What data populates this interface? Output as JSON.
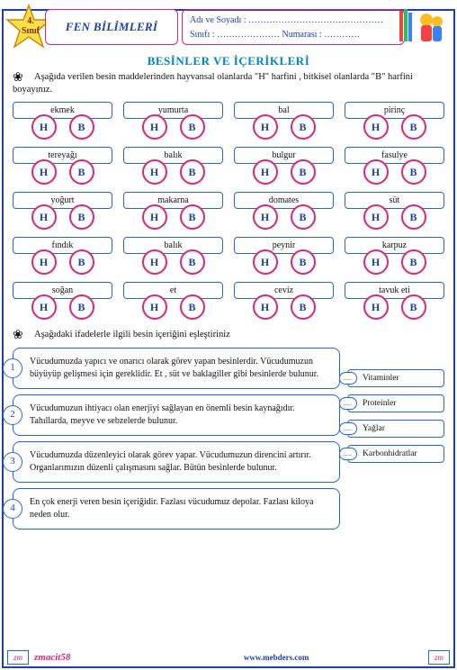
{
  "header": {
    "grade_num": "4.",
    "grade_label": "Sınıf",
    "subject": "FEN BİLİMLERİ",
    "name_label": "Adı ve Soyadı :",
    "name_dots": "………………………………………",
    "class_label": "Sınıfı :",
    "class_dots": "…………………",
    "number_label": "Numarası :",
    "number_dots": "…………"
  },
  "main_title": "BESİNLER  VE  İÇERİKLERİ",
  "instruction1": "Aşağıda verilen besin maddelerinden hayvansal olanlarda \"H\" harfini , bitkisel olanlarda  \"B\" harfini boyayınız.",
  "foods": [
    "ekmek",
    "yumurta",
    "bal",
    "pirinç",
    "tereyağı",
    "balık",
    "bulgur",
    "fasulye",
    "yoğurt",
    "makarna",
    "domates",
    "süt",
    "fındık",
    "balık",
    "peynir",
    "karpuz",
    "soğan",
    "et",
    "ceviz",
    "tavuk eti"
  ],
  "h_label": "H",
  "b_label": "B",
  "instruction2": "Aşağıdaki ifadelerle ilgili besin içeriğini eşleştiriniz",
  "matches": [
    {
      "num": "1",
      "text": "Vücudumuzda yapıcı ve onarıcı olarak görev yapan besinlerdir. Vücudumuzun büyüyüp gelişmesi için gereklidir. Et , süt ve baklagiller gibi besinlerde bulunur."
    },
    {
      "num": "2",
      "text": "Vücudumuzun ihtiyacı olan enerjiyi sağlayan en önemli besin kaynağıdır. Tahıllarda, meyve ve sebzelerde bulunur."
    },
    {
      "num": "3",
      "text": "Vücudumuzda düzenleyici olarak görev yapar. Vücudumuzun direncini artırır. Organlarımızın düzenli çalışmasını sağlar. Bütün besinlerde bulunur."
    },
    {
      "num": "4",
      "text": "En çok enerji veren besin içeriğidir. Fazlası vücudumuz depolar. Fazlası kiloya neden olur."
    }
  ],
  "answers": [
    "Vitaminler",
    "Proteinler",
    "Yağlar",
    "Karbonhidratlar"
  ],
  "answer_dots": ".....",
  "footer": {
    "zm": "zm",
    "author": "zmacit58",
    "site": "www.mebders.com"
  }
}
